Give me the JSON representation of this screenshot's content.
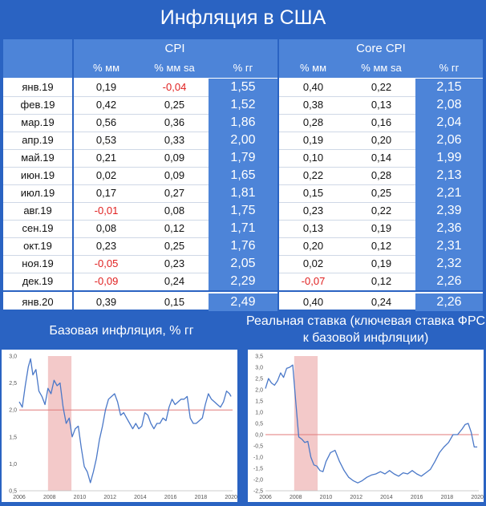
{
  "title": "Инфляция в США",
  "table": {
    "group_headers": [
      "CPI",
      "Core CPI"
    ],
    "sub_headers": [
      "% мм",
      "% мм sa",
      "% гг",
      "% мм",
      "% мм sa",
      "% гг"
    ],
    "rows": [
      {
        "month": "янв.19",
        "cpi_mm": "0,19",
        "cpi_mm_sa": "-0,04",
        "cpi_yy": "1,55",
        "core_mm": "0,40",
        "core_mm_sa": "0,22",
        "core_yy": "2,15"
      },
      {
        "month": "фев.19",
        "cpi_mm": "0,42",
        "cpi_mm_sa": "0,25",
        "cpi_yy": "1,52",
        "core_mm": "0,38",
        "core_mm_sa": "0,13",
        "core_yy": "2,08"
      },
      {
        "month": "мар.19",
        "cpi_mm": "0,56",
        "cpi_mm_sa": "0,36",
        "cpi_yy": "1,86",
        "core_mm": "0,28",
        "core_mm_sa": "0,16",
        "core_yy": "2,04"
      },
      {
        "month": "апр.19",
        "cpi_mm": "0,53",
        "cpi_mm_sa": "0,33",
        "cpi_yy": "2,00",
        "core_mm": "0,19",
        "core_mm_sa": "0,20",
        "core_yy": "2,06"
      },
      {
        "month": "май.19",
        "cpi_mm": "0,21",
        "cpi_mm_sa": "0,09",
        "cpi_yy": "1,79",
        "core_mm": "0,10",
        "core_mm_sa": "0,14",
        "core_yy": "1,99"
      },
      {
        "month": "июн.19",
        "cpi_mm": "0,02",
        "cpi_mm_sa": "0,09",
        "cpi_yy": "1,65",
        "core_mm": "0,22",
        "core_mm_sa": "0,28",
        "core_yy": "2,13"
      },
      {
        "month": "июл.19",
        "cpi_mm": "0,17",
        "cpi_mm_sa": "0,27",
        "cpi_yy": "1,81",
        "core_mm": "0,15",
        "core_mm_sa": "0,25",
        "core_yy": "2,21"
      },
      {
        "month": "авг.19",
        "cpi_mm": "-0,01",
        "cpi_mm_sa": "0,08",
        "cpi_yy": "1,75",
        "core_mm": "0,23",
        "core_mm_sa": "0,22",
        "core_yy": "2,39"
      },
      {
        "month": "сен.19",
        "cpi_mm": "0,08",
        "cpi_mm_sa": "0,12",
        "cpi_yy": "1,71",
        "core_mm": "0,13",
        "core_mm_sa": "0,19",
        "core_yy": "2,36"
      },
      {
        "month": "окт.19",
        "cpi_mm": "0,23",
        "cpi_mm_sa": "0,25",
        "cpi_yy": "1,76",
        "core_mm": "0,20",
        "core_mm_sa": "0,12",
        "core_yy": "2,31"
      },
      {
        "month": "ноя.19",
        "cpi_mm": "-0,05",
        "cpi_mm_sa": "0,23",
        "cpi_yy": "2,05",
        "core_mm": "0,02",
        "core_mm_sa": "0,19",
        "core_yy": "2,32"
      },
      {
        "month": "дек.19",
        "cpi_mm": "-0,09",
        "cpi_mm_sa": "0,24",
        "cpi_yy": "2,29",
        "core_mm": "-0,07",
        "core_mm_sa": "0,12",
        "core_yy": "2,26"
      },
      {
        "month": "янв.20",
        "cpi_mm": "0,39",
        "cpi_mm_sa": "0,15",
        "cpi_yy": "2,49",
        "core_mm": "0,40",
        "core_mm_sa": "0,24",
        "core_yy": "2,26"
      }
    ]
  },
  "colors": {
    "background": "#2a63c2",
    "header_fill": "#4d84d8",
    "negative": "#e02020",
    "line": "#4a78c8",
    "reference_line": "#e07a7a",
    "recession_band": "#f3c9c9"
  },
  "chart_data": [
    {
      "type": "line",
      "title": "Базовая инфляция, % гг",
      "xlim": [
        2006,
        2020.1
      ],
      "ylim": [
        0.5,
        3.0
      ],
      "x_ticks": [
        "2006",
        "2008",
        "2010",
        "2012",
        "2014",
        "2016",
        "2018",
        "2020"
      ],
      "y_ticks": [
        "0,5",
        "1,0",
        "1,5",
        "2,0",
        "2,5",
        "3,0"
      ],
      "reference_line": 2.0,
      "shaded_range": [
        2007.9,
        2009.45
      ],
      "x": [
        2006.0,
        2006.2,
        2006.4,
        2006.6,
        2006.75,
        2006.9,
        2007.1,
        2007.3,
        2007.5,
        2007.7,
        2007.9,
        2008.1,
        2008.3,
        2008.5,
        2008.7,
        2008.9,
        2009.1,
        2009.3,
        2009.5,
        2009.7,
        2009.9,
        2010.1,
        2010.3,
        2010.5,
        2010.7,
        2010.9,
        2011.1,
        2011.3,
        2011.5,
        2011.7,
        2011.9,
        2012.1,
        2012.3,
        2012.5,
        2012.7,
        2012.9,
        2013.1,
        2013.3,
        2013.5,
        2013.7,
        2013.9,
        2014.1,
        2014.3,
        2014.5,
        2014.7,
        2014.9,
        2015.1,
        2015.3,
        2015.5,
        2015.7,
        2015.9,
        2016.1,
        2016.3,
        2016.5,
        2016.7,
        2016.9,
        2017.1,
        2017.3,
        2017.5,
        2017.7,
        2017.9,
        2018.1,
        2018.3,
        2018.5,
        2018.7,
        2018.9,
        2019.1,
        2019.3,
        2019.5,
        2019.7,
        2019.9,
        2020.0
      ],
      "y": [
        2.15,
        2.05,
        2.45,
        2.8,
        2.95,
        2.65,
        2.75,
        2.35,
        2.25,
        2.1,
        2.4,
        2.3,
        2.55,
        2.45,
        2.5,
        2.05,
        1.75,
        1.85,
        1.5,
        1.65,
        1.7,
        1.3,
        0.95,
        0.85,
        0.65,
        0.85,
        1.1,
        1.45,
        1.7,
        2.0,
        2.2,
        2.25,
        2.3,
        2.15,
        1.9,
        1.95,
        1.85,
        1.75,
        1.65,
        1.75,
        1.65,
        1.7,
        1.95,
        1.9,
        1.75,
        1.65,
        1.75,
        1.75,
        1.85,
        1.8,
        2.05,
        2.2,
        2.1,
        2.15,
        2.2,
        2.2,
        2.25,
        1.85,
        1.75,
        1.75,
        1.8,
        1.85,
        2.1,
        2.3,
        2.2,
        2.15,
        2.1,
        2.05,
        2.15,
        2.35,
        2.3,
        2.25
      ]
    },
    {
      "type": "line",
      "title": "Реальная ставка (ключевая ставка ФРС к базовой инфляции)",
      "xlim": [
        2006,
        2020.1
      ],
      "ylim": [
        -2.5,
        3.5
      ],
      "x_ticks": [
        "2006",
        "2008",
        "2010",
        "2012",
        "2014",
        "2016",
        "2018",
        "2020"
      ],
      "y_ticks": [
        "-2,5",
        "-2,0",
        "-1,5",
        "-1,0",
        "-0,5",
        "0,0",
        "0,5",
        "1,0",
        "1,5",
        "2,0",
        "2,5",
        "3,0",
        "3,5"
      ],
      "reference_line": 0.0,
      "shaded_range": [
        2007.9,
        2009.45
      ],
      "x": [
        2006.0,
        2006.2,
        2006.4,
        2006.6,
        2006.8,
        2007.0,
        2007.2,
        2007.4,
        2007.6,
        2007.8,
        2008.0,
        2008.2,
        2008.4,
        2008.6,
        2008.8,
        2009.0,
        2009.2,
        2009.4,
        2009.6,
        2009.8,
        2010.0,
        2010.3,
        2010.6,
        2010.9,
        2011.2,
        2011.5,
        2011.8,
        2012.1,
        2012.4,
        2012.7,
        2013.0,
        2013.3,
        2013.6,
        2013.9,
        2014.2,
        2014.5,
        2014.8,
        2015.1,
        2015.4,
        2015.7,
        2016.0,
        2016.3,
        2016.6,
        2016.9,
        2017.2,
        2017.5,
        2017.8,
        2018.1,
        2018.4,
        2018.7,
        2019.0,
        2019.2,
        2019.4,
        2019.6,
        2019.8,
        2020.0
      ],
      "y": [
        2.05,
        2.5,
        2.3,
        2.2,
        2.4,
        2.75,
        2.55,
        2.95,
        3.0,
        3.1,
        1.5,
        -0.1,
        -0.2,
        -0.35,
        -0.3,
        -1.0,
        -1.35,
        -1.4,
        -1.6,
        -1.65,
        -1.2,
        -0.8,
        -0.7,
        -1.2,
        -1.6,
        -1.9,
        -2.05,
        -2.15,
        -2.05,
        -1.9,
        -1.8,
        -1.75,
        -1.65,
        -1.75,
        -1.6,
        -1.75,
        -1.85,
        -1.7,
        -1.75,
        -1.6,
        -1.75,
        -1.85,
        -1.7,
        -1.55,
        -1.2,
        -0.8,
        -0.55,
        -0.35,
        0.0,
        0.0,
        0.25,
        0.45,
        0.5,
        0.1,
        -0.55,
        -0.55
      ]
    }
  ]
}
